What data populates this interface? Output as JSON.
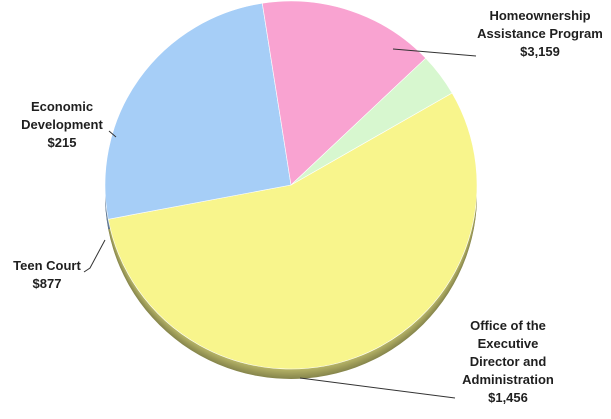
{
  "chart_data": {
    "type": "pie",
    "title": "",
    "slices": [
      {
        "name": "Homeownership Assistance Program",
        "label_lines": [
          "Homeownership",
          "Assistance Program"
        ],
        "value_label": "$3,159",
        "value": 3159,
        "color": "#f8f58c"
      },
      {
        "name": "Office of the Executive Director and Administration",
        "label_lines": [
          "Office of the",
          "Executive",
          "Director and",
          "Administration"
        ],
        "value_label": "$1,456",
        "value": 1456,
        "color": "#a6cef7"
      },
      {
        "name": "Teen Court",
        "label_lines": [
          "Teen Court"
        ],
        "value_label": "$877",
        "value": 877,
        "color": "#f9a3d1"
      },
      {
        "name": "Economic Development",
        "label_lines": [
          "Economic",
          "Development"
        ],
        "value_label": "$215",
        "value": 215,
        "color": "#d7f7cf"
      }
    ],
    "legend": "none",
    "style": "3d-tilted"
  }
}
